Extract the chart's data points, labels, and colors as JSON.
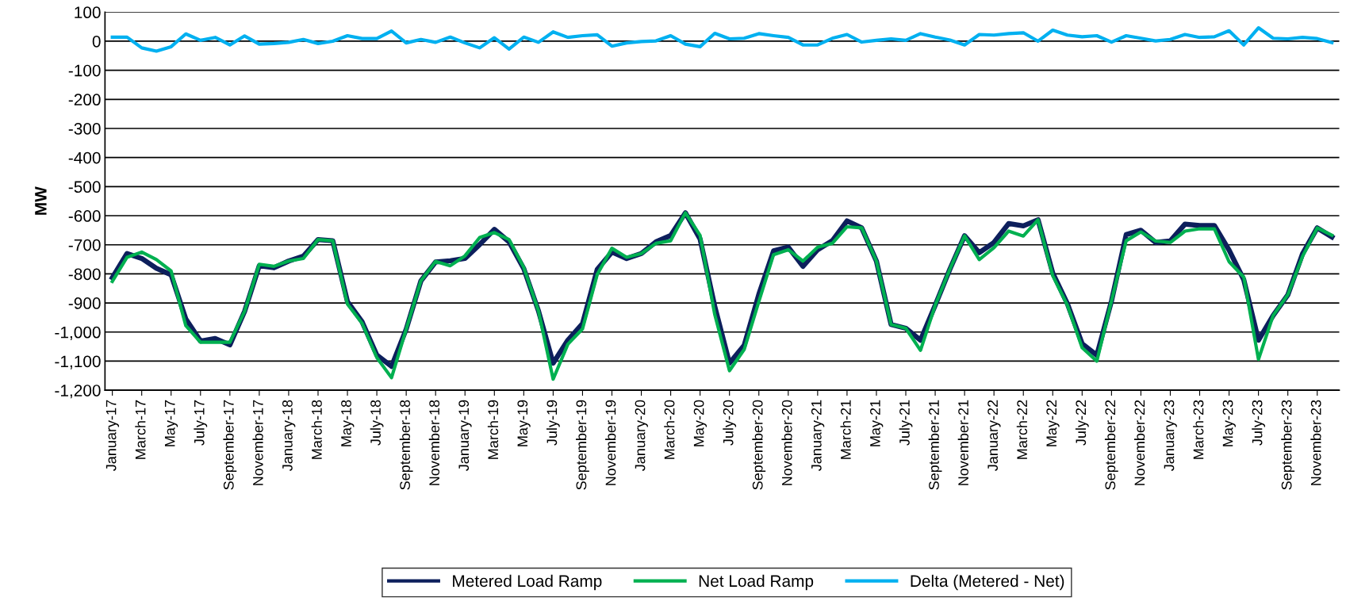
{
  "chart_data": {
    "type": "line",
    "ylabel": "MW",
    "categories": [
      "January-17",
      null,
      "March-17",
      null,
      "May-17",
      null,
      "July-17",
      null,
      "September-17",
      null,
      "November-17",
      null,
      "January-18",
      null,
      "March-18",
      null,
      "May-18",
      null,
      "July-18",
      null,
      "September-18",
      null,
      "November-18",
      null,
      "January-19",
      null,
      "March-19",
      null,
      "May-19",
      null,
      "July-19",
      null,
      "September-19",
      null,
      "November-19",
      null,
      "January-20",
      null,
      "March-20",
      null,
      "May-20",
      null,
      "July-20",
      null,
      "September-20",
      null,
      "November-20",
      null,
      "January-21",
      null,
      "March-21",
      null,
      "May-21",
      null,
      "July-21",
      null,
      "September-21",
      null,
      "November-21",
      null,
      "January-22",
      null,
      "March-22",
      null,
      "May-22",
      null,
      "July-22",
      null,
      "September-22",
      null,
      "November-22",
      null,
      "January-23",
      null,
      "March-23",
      null,
      "May-23",
      null,
      "July-23",
      null,
      "September-23",
      null,
      "November-23",
      null
    ],
    "series": [
      {
        "name": "Metered Load Ramp",
        "color": "#0d1f5c",
        "values": [
          -813,
          -730,
          -747,
          -781,
          -803,
          -955,
          -1031,
          -1022,
          -1044,
          -929,
          -772,
          -779,
          -756,
          -739,
          -682,
          -686,
          -895,
          -965,
          -1079,
          -1118,
          -990,
          -824,
          -759,
          -755,
          -747,
          -699,
          -647,
          -690,
          -782,
          -927,
          -1107,
          -1028,
          -971,
          -785,
          -725,
          -747,
          -730,
          -690,
          -668,
          -590,
          -680,
          -912,
          -1107,
          -1046,
          -870,
          -721,
          -708,
          -774,
          -717,
          -686,
          -618,
          -642,
          -756,
          -974,
          -987,
          -1028,
          -908,
          -784,
          -669,
          -727,
          -692,
          -627,
          -635,
          -614,
          -797,
          -903,
          -1040,
          -1080,
          -893,
          -665,
          -650,
          -692,
          -687,
          -629,
          -634,
          -634,
          -718,
          -820,
          -1028,
          -943,
          -872,
          -731,
          -642,
          -673
        ]
      },
      {
        "name": "Net Load Ramp",
        "color": "#00b050",
        "values": [
          -826,
          -743,
          -725,
          -751,
          -790,
          -978,
          -1035,
          -1035,
          -1035,
          -929,
          -767,
          -774,
          -756,
          -747,
          -682,
          -686,
          -904,
          -970,
          -1088,
          -1157,
          -990,
          -824,
          -757,
          -772,
          -738,
          -675,
          -658,
          -682,
          -778,
          -927,
          -1162,
          -1042,
          -989,
          -802,
          -712,
          -743,
          -730,
          -695,
          -686,
          -590,
          -668,
          -940,
          -1133,
          -1060,
          -895,
          -734,
          -717,
          -756,
          -708,
          -695,
          -638,
          -642,
          -756,
          -974,
          -987,
          -1063,
          -908,
          -784,
          -669,
          -751,
          -710,
          -653,
          -670,
          -614,
          -806,
          -908,
          -1054,
          -1100,
          -893,
          -686,
          -656,
          -687,
          -692,
          -653,
          -645,
          -645,
          -758,
          -811,
          -1094,
          -943,
          -872,
          -740,
          -642,
          -667
        ]
      },
      {
        "name": "Delta (Metered - Net)",
        "color": "#00b0f0",
        "values": [
          14,
          14,
          -23,
          -34,
          -19,
          25,
          3,
          13,
          -13,
          18,
          -10,
          -8,
          -4,
          6,
          -8,
          0,
          19,
          9,
          9,
          35,
          -6,
          6,
          -4,
          14,
          -6,
          -23,
          12,
          -27,
          14,
          -4,
          32,
          13,
          19,
          22,
          -17,
          -6,
          -1,
          1,
          19,
          -10,
          -19,
          27,
          8,
          10,
          26,
          19,
          13,
          -13,
          -13,
          10,
          23,
          -3,
          3,
          8,
          3,
          26,
          14,
          4,
          -13,
          23,
          21,
          26,
          29,
          0,
          38,
          21,
          15,
          19,
          -3,
          19,
          10,
          1,
          6,
          23,
          13,
          15,
          36,
          -13,
          46,
          10,
          8,
          13,
          9,
          -5
        ]
      }
    ],
    "ylim": [
      -1200,
      100
    ],
    "yticks": [
      100,
      0,
      -100,
      -200,
      -300,
      -400,
      -500,
      -600,
      -700,
      -800,
      -900,
      {
        "value": -1000,
        "label": "-1,000"
      },
      {
        "value": -1100,
        "label": "-1,100"
      },
      {
        "value": -1200,
        "label": "-1,200"
      }
    ],
    "grid": "y",
    "legend": "bottom",
    "marker": "none",
    "line_style": "solid"
  }
}
